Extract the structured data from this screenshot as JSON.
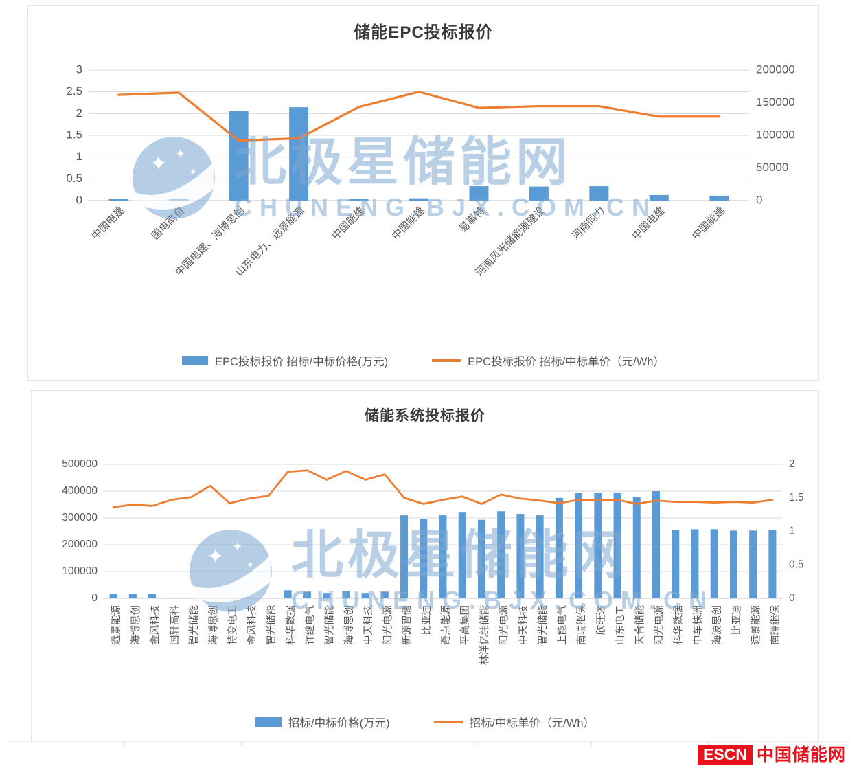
{
  "watermark": {
    "brand": "北极星储能网",
    "domain": "CHUNENG.BJX.COM.CN",
    "color": "#7fa8d2"
  },
  "footer": {
    "escn": "ESCN",
    "site": "中国储能网",
    "accent": "#e8121c"
  },
  "chart_data": [
    {
      "type": "bar",
      "title": "储能EPC投标报价",
      "legend_position": "bottom",
      "grid": true,
      "categories": [
        "中国电建",
        "国电南自",
        "中国电建、海博思创",
        "山东电力、远景能源",
        "中国能建",
        "中国能建",
        "易事特",
        "河南风光储能源建设",
        "河南同力",
        "中国电建",
        "中国能建"
      ],
      "series": [
        {
          "name": "EPC投标报价 招标/中标价格(万元)",
          "type": "bar",
          "axis": "right",
          "values": [
            3000,
            2500,
            137000,
            143000,
            2500,
            3500,
            22000,
            21500,
            22000,
            8500,
            7500
          ]
        },
        {
          "name": "EPC投标报价 招标/中标单价（元/Wh）",
          "type": "line",
          "axis": "left",
          "values": [
            2.43,
            2.48,
            1.38,
            1.43,
            2.15,
            2.5,
            2.13,
            2.17,
            2.17,
            1.93,
            1.93
          ]
        }
      ],
      "left_axis": {
        "min": 0,
        "max": 3,
        "ticks": [
          "3",
          "2.5",
          "2",
          "1.5",
          "1",
          "0.5",
          "0"
        ]
      },
      "right_axis": {
        "min": 0,
        "max": 200000,
        "ticks": [
          "200000",
          "150000",
          "100000",
          "50000",
          "0"
        ]
      },
      "colors": {
        "bar": "#5B9BD5",
        "line": "#ED7D31"
      }
    },
    {
      "type": "bar",
      "title": "储能系统投标报价",
      "legend_position": "bottom",
      "grid": true,
      "categories": [
        "远景能源",
        "海博思创",
        "金风科技",
        "国轩高科",
        "智光储能",
        "海博思创",
        "特变电工",
        "金风科技",
        "智光储能",
        "科华数据",
        "许继电气",
        "智光储能",
        "海博思创",
        "中天科技",
        "阳光电源",
        "新源智储",
        "比亚迪",
        "奇点能源",
        "平高集团",
        "林洋亿纬储能",
        "阳光电源",
        "中天科技",
        "智光储能",
        "上能电气",
        "南瑞继保",
        "欣旺达",
        "山东电工",
        "天合储能",
        "阳光电源",
        "科华数据",
        "中车株洲",
        "海波思创",
        "比亚迪",
        "远景能源",
        "南瑞继保"
      ],
      "series": [
        {
          "name": "招标/中标价格(万元)",
          "type": "bar",
          "axis": "left",
          "values": [
            18000,
            18000,
            18000,
            0,
            0,
            0,
            0,
            0,
            0,
            30000,
            25000,
            20000,
            27000,
            20000,
            25000,
            310000,
            297000,
            310000,
            320000,
            293000,
            325000,
            315000,
            310000,
            375000,
            395000,
            395000,
            395000,
            378000,
            400000,
            255000,
            258000,
            258000,
            253000,
            253000,
            255000
          ]
        },
        {
          "name": "招标/中标单价（元/Wh）",
          "type": "line",
          "axis": "right",
          "values": [
            1.36,
            1.4,
            1.38,
            1.47,
            1.51,
            1.68,
            1.42,
            1.49,
            1.53,
            1.89,
            1.91,
            1.77,
            1.9,
            1.77,
            1.85,
            1.5,
            1.41,
            1.47,
            1.52,
            1.41,
            1.55,
            1.49,
            1.46,
            1.42,
            1.47,
            1.46,
            1.47,
            1.41,
            1.46,
            1.44,
            1.44,
            1.43,
            1.44,
            1.43,
            1.47
          ]
        }
      ],
      "left_axis": {
        "min": 0,
        "max": 500000,
        "ticks": [
          "500000",
          "400000",
          "300000",
          "200000",
          "100000",
          "0"
        ]
      },
      "right_axis": {
        "min": 0,
        "max": 2,
        "ticks": [
          "2",
          "1.5",
          "1",
          "0.5",
          "0"
        ]
      },
      "colors": {
        "bar": "#5B9BD5",
        "line": "#ED7D31"
      }
    }
  ]
}
